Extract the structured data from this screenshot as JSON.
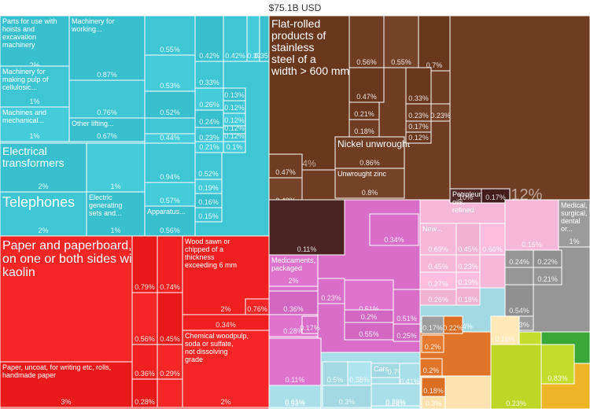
{
  "title": "$75.1B USD",
  "chart_data": {
    "type": "treemap",
    "total_label": "$75.1B USD",
    "groups": [
      {
        "id": "machinery",
        "color": "#3fc6d4"
      },
      {
        "id": "paper",
        "color": "#f02020"
      },
      {
        "id": "metals",
        "color": "#6f3d22"
      },
      {
        "id": "mineral",
        "color": "#4a2222"
      },
      {
        "id": "chemicals",
        "color": "#d86ec8"
      },
      {
        "id": "transport",
        "color": "#a9dfe8"
      },
      {
        "id": "misc",
        "color": "#f6b8d8"
      },
      {
        "id": "instruments",
        "color": "#969696"
      },
      {
        "id": "plastics",
        "color": "#e07428"
      },
      {
        "id": "stone",
        "color": "#fbe3b0"
      },
      {
        "id": "vegetable",
        "color": "#c4dc2c"
      },
      {
        "id": "foodstuffs",
        "color": "#38a838"
      },
      {
        "id": "animal",
        "color": "#f0b428"
      }
    ],
    "tiles": [
      {
        "group": "machinery",
        "label": "Parts for use with hoists and excavation machinery",
        "pct": "2%"
      },
      {
        "group": "machinery",
        "label": "Machinery for making pulp of cellulosic...",
        "pct": "1%"
      },
      {
        "group": "machinery",
        "label": "Machines and mechanical...",
        "pct": "1%"
      },
      {
        "group": "machinery",
        "label": "Machinery for working...",
        "pct": "0.87%"
      },
      {
        "group": "machinery",
        "label": "",
        "pct": "0.76%"
      },
      {
        "group": "machinery",
        "label": "",
        "pct": "0.68%"
      },
      {
        "group": "machinery",
        "label": "Other lifting...",
        "pct": "0.67%"
      },
      {
        "group": "machinery",
        "label": "",
        "pct": "0.55%"
      },
      {
        "group": "machinery",
        "label": "",
        "pct": "0.53%"
      },
      {
        "group": "machinery",
        "label": "",
        "pct": "0.52%"
      },
      {
        "group": "machinery",
        "label": "",
        "pct": "0.45%"
      },
      {
        "group": "machinery",
        "label": "",
        "pct": "0.44%"
      },
      {
        "group": "machinery",
        "label": "",
        "pct": "0.42%"
      },
      {
        "group": "machinery",
        "label": "",
        "pct": "0.42%"
      },
      {
        "group": "machinery",
        "label": "",
        "pct": "0.37%"
      },
      {
        "group": "machinery",
        "label": "",
        "pct": "0.35%"
      },
      {
        "group": "machinery",
        "label": "",
        "pct": "0.33%"
      },
      {
        "group": "machinery",
        "label": "",
        "pct": "0.26%"
      },
      {
        "group": "machinery",
        "label": "",
        "pct": "0.24%"
      },
      {
        "group": "machinery",
        "label": "",
        "pct": "0.23%"
      },
      {
        "group": "machinery",
        "label": "",
        "pct": "0.21%"
      },
      {
        "group": "machinery",
        "label": "",
        "pct": "0.13%"
      },
      {
        "group": "machinery",
        "label": "",
        "pct": "0.12%"
      },
      {
        "group": "machinery",
        "label": "",
        "pct": "0.12%"
      },
      {
        "group": "machinery",
        "label": "",
        "pct": "0.12%"
      },
      {
        "group": "machinery",
        "label": "",
        "pct": "0.12%"
      },
      {
        "group": "machinery",
        "label": "",
        "pct": "0.1%"
      },
      {
        "group": "machinery",
        "label": "Electrical transformers",
        "pct": "2%"
      },
      {
        "group": "machinery",
        "label": "Telephones",
        "pct": "2%"
      },
      {
        "group": "machinery",
        "label": "",
        "pct": "1%"
      },
      {
        "group": "machinery",
        "label": "Electric generating sets and...",
        "pct": "1%"
      },
      {
        "group": "machinery",
        "label": "",
        "pct": "0.94%"
      },
      {
        "group": "machinery",
        "label": "",
        "pct": "0.57%"
      },
      {
        "group": "machinery",
        "label": "Apparatus...",
        "pct": "0.56%"
      },
      {
        "group": "machinery",
        "label": "",
        "pct": "0.52%"
      },
      {
        "group": "machinery",
        "label": "",
        "pct": "0.19%"
      },
      {
        "group": "machinery",
        "label": "",
        "pct": "0.16%"
      },
      {
        "group": "machinery",
        "label": "",
        "pct": "0.15%"
      },
      {
        "group": "paper",
        "label": "Paper and paperboard, coated on one or both sides with kaolin",
        "pct": "7%"
      },
      {
        "group": "paper",
        "label": "Paper, uncoat, for writing etc, rolls, handmade paper",
        "pct": "3%"
      },
      {
        "group": "paper",
        "label": "Wood sawn or chipped of a thickness exceeding 6 mm",
        "pct": "2%"
      },
      {
        "group": "paper",
        "label": "Chemical woodpulp, soda or sulfate, not dissolving grade",
        "pct": "2%"
      },
      {
        "group": "paper",
        "label": "",
        "pct": "0.79%"
      },
      {
        "group": "paper",
        "label": "",
        "pct": "0.74%"
      },
      {
        "group": "paper",
        "label": "",
        "pct": "0.56%"
      },
      {
        "group": "paper",
        "label": "",
        "pct": "0.45%"
      },
      {
        "group": "paper",
        "label": "",
        "pct": "0.36%"
      },
      {
        "group": "paper",
        "label": "",
        "pct": "0.29%"
      },
      {
        "group": "paper",
        "label": "",
        "pct": "0.28%"
      },
      {
        "group": "paper",
        "label": "",
        "pct": "0.34%"
      },
      {
        "group": "paper",
        "label": "",
        "pct": "0.76%"
      },
      {
        "group": "metals",
        "label": "Flat-rolled products of stainless steel of a width > 600 mm",
        "pct": "4%"
      },
      {
        "group": "metals",
        "label": "Nickel unwrought",
        "pct": "0.86%"
      },
      {
        "group": "metals",
        "label": "Unwrought zinc",
        "pct": "0.8%"
      },
      {
        "group": "metals",
        "label": "",
        "pct": "0.7%"
      },
      {
        "group": "metals",
        "label": "",
        "pct": "0.56%"
      },
      {
        "group": "metals",
        "label": "",
        "pct": "0.55%"
      },
      {
        "group": "metals",
        "label": "",
        "pct": "0.47%"
      },
      {
        "group": "metals",
        "label": "",
        "pct": "0.47%"
      },
      {
        "group": "metals",
        "label": "",
        "pct": "0.42%"
      },
      {
        "group": "metals",
        "label": "",
        "pct": "0.33%"
      },
      {
        "group": "metals",
        "label": "",
        "pct": "0.23%"
      },
      {
        "group": "metals",
        "label": "",
        "pct": "0.23%"
      },
      {
        "group": "metals",
        "label": "",
        "pct": "0.21%"
      },
      {
        "group": "metals",
        "label": "",
        "pct": "0.18%"
      },
      {
        "group": "metals",
        "label": "",
        "pct": "0.17%"
      },
      {
        "group": "metals",
        "label": "",
        "pct": "0.12%"
      },
      {
        "group": "metals",
        "label": "",
        "pct": "0.12%"
      },
      {
        "group": "mineral",
        "label": "Petroleum oils, refined",
        "pct": "10%"
      },
      {
        "group": "mineral",
        "label": "",
        "pct": "0.17%"
      },
      {
        "group": "mineral",
        "label": "",
        "pct": "0.11%"
      },
      {
        "group": "chemicals",
        "label": "Medicaments, packaged",
        "pct": "2%"
      },
      {
        "group": "chemicals",
        "label": "",
        "pct": "0.55%"
      },
      {
        "group": "chemicals",
        "label": "",
        "pct": "0.51%"
      },
      {
        "group": "chemicals",
        "label": "",
        "pct": "0.51%"
      },
      {
        "group": "chemicals",
        "label": "",
        "pct": "0.36%"
      },
      {
        "group": "chemicals",
        "label": "",
        "pct": "0.34%"
      },
      {
        "group": "chemicals",
        "label": "",
        "pct": "0.28%"
      },
      {
        "group": "chemicals",
        "label": "",
        "pct": "0.25%"
      },
      {
        "group": "chemicals",
        "label": "",
        "pct": "0.23%"
      },
      {
        "group": "chemicals",
        "label": "",
        "pct": "0.22%"
      },
      {
        "group": "chemicals",
        "label": "",
        "pct": "0.2%"
      },
      {
        "group": "chemicals",
        "label": "",
        "pct": "0.17%"
      },
      {
        "group": "chemicals",
        "label": "",
        "pct": "0.11%"
      },
      {
        "group": "transport",
        "label": "Cars",
        "pct": "0.7%"
      },
      {
        "group": "transport",
        "label": "",
        "pct": "0.61%"
      },
      {
        "group": "transport",
        "label": "",
        "pct": "0.53%"
      },
      {
        "group": "transport",
        "label": "",
        "pct": "0.5%"
      },
      {
        "group": "transport",
        "label": "",
        "pct": "0.41%"
      },
      {
        "group": "transport",
        "label": "",
        "pct": "0.38%"
      },
      {
        "group": "transport",
        "label": "",
        "pct": "0.3%"
      },
      {
        "group": "transport",
        "label": "",
        "pct": "0.28%"
      },
      {
        "group": "transport",
        "label": "",
        "pct": "0.24%"
      },
      {
        "group": "transport",
        "label": "",
        "pct": "0.24%"
      },
      {
        "group": "misc",
        "label": "New...",
        "pct": "0.69%"
      },
      {
        "group": "misc",
        "label": "",
        "pct": "0.66%"
      },
      {
        "group": "misc",
        "label": "",
        "pct": "0.45%"
      },
      {
        "group": "misc",
        "label": "",
        "pct": "0.45%"
      },
      {
        "group": "misc",
        "label": "",
        "pct": "0.27%"
      },
      {
        "group": "misc",
        "label": "",
        "pct": "0.26%"
      },
      {
        "group": "misc",
        "label": "",
        "pct": "0.23%"
      },
      {
        "group": "misc",
        "label": "",
        "pct": "0.19%"
      },
      {
        "group": "misc",
        "label": "",
        "pct": "0.18%"
      },
      {
        "group": "misc",
        "label": "",
        "pct": "0.16%"
      },
      {
        "group": "instruments",
        "label": "Medical, surgical, dental or...",
        "pct": "1%"
      },
      {
        "group": "instruments",
        "label": "",
        "pct": "0.54%"
      },
      {
        "group": "instruments",
        "label": "",
        "pct": "0.24%"
      },
      {
        "group": "instruments",
        "label": "",
        "pct": "0.23%"
      },
      {
        "group": "instruments",
        "label": "",
        "pct": "0.22%"
      },
      {
        "group": "instruments",
        "label": "",
        "pct": "0.21%"
      },
      {
        "group": "instruments",
        "label": "",
        "pct": "0.17%"
      },
      {
        "group": "plastics",
        "label": "",
        "pct": "0.22%"
      },
      {
        "group": "plastics",
        "label": "",
        "pct": "0.2%"
      },
      {
        "group": "plastics",
        "label": "",
        "pct": "0.2%"
      },
      {
        "group": "plastics",
        "label": "",
        "pct": "0.18%"
      },
      {
        "group": "stone",
        "label": "",
        "pct": "0.3%"
      },
      {
        "group": "stone",
        "label": "",
        "pct": "0.16%"
      },
      {
        "group": "vegetable",
        "label": "",
        "pct": "0.23%"
      },
      {
        "group": "vegetable",
        "label": "",
        "pct": "0.83%"
      },
      {
        "group": "foodstuffs",
        "label": "",
        "pct": "0.13%"
      }
    ]
  }
}
